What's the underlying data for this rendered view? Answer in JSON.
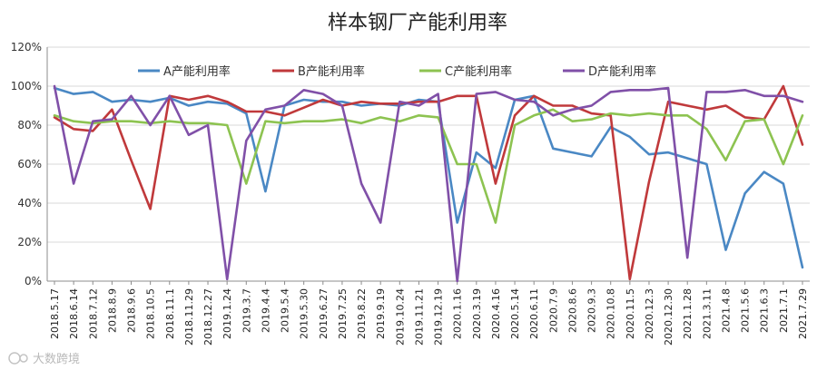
{
  "watermark": "大数跨境",
  "chart_data": {
    "type": "line",
    "title": "样本钢厂产能利用率",
    "xlabel": "",
    "ylabel": "",
    "ylim": [
      0,
      1.2
    ],
    "y_ticks": [
      "0%",
      "20%",
      "40%",
      "60%",
      "80%",
      "100%",
      "120%"
    ],
    "grid": "horizontal",
    "legend_position": "top",
    "categories": [
      "2018.5.17",
      "2018.6.14",
      "2018.7.12",
      "2018.8.9",
      "2018.9.6",
      "2018.10.5",
      "2018.11.1",
      "2018.11.29",
      "2018.12.27",
      "2019.1.24",
      "2019.3.7",
      "2019.4.4",
      "2019.5.4",
      "2019.5.30",
      "2019.6.27",
      "2019.7.25",
      "2019.8.22",
      "2019.9.19",
      "2019.10.24",
      "2019.11.21",
      "2019.12.19",
      "2020.1.16",
      "2020.3.19",
      "2020.4.16",
      "2020.5.14",
      "2020.6.11",
      "2020.7.9",
      "2020.8.6",
      "2020.9.3",
      "2020.10.8",
      "2020.11.5",
      "2020.12.3",
      "2020.12.30",
      "2021.1.28",
      "2021.3.11",
      "2021.4.8",
      "2021.5.6",
      "2021.6.3",
      "2021.7.1",
      "2021.7.29"
    ],
    "series": [
      {
        "name": "A产能利用率",
        "color": "#4a88c4",
        "values": [
          0.99,
          0.96,
          0.97,
          0.92,
          0.93,
          0.92,
          0.94,
          0.9,
          0.92,
          0.91,
          0.86,
          0.46,
          0.9,
          0.93,
          0.92,
          0.92,
          0.9,
          0.91,
          0.9,
          0.93,
          0.92,
          0.3,
          0.66,
          0.58,
          0.93,
          0.95,
          0.68,
          0.66,
          0.64,
          0.79,
          0.74,
          0.65,
          0.66,
          0.63,
          0.6,
          0.16,
          0.45,
          0.56,
          0.5,
          0.07
        ]
      },
      {
        "name": "B产能利用率",
        "color": "#c0393b",
        "values": [
          0.84,
          0.78,
          0.77,
          0.88,
          0.62,
          0.37,
          0.95,
          0.93,
          0.95,
          0.92,
          0.87,
          0.87,
          0.85,
          0.89,
          0.93,
          0.9,
          0.92,
          0.91,
          0.91,
          0.92,
          0.92,
          0.95,
          0.95,
          0.5,
          0.85,
          0.95,
          0.9,
          0.9,
          0.86,
          0.85,
          0.01,
          0.51,
          0.92,
          0.9,
          0.88,
          0.9,
          0.84,
          0.83,
          1.0,
          0.7
        ]
      },
      {
        "name": "C产能利用率",
        "color": "#8dc351",
        "values": [
          0.85,
          0.82,
          0.81,
          0.82,
          0.82,
          0.81,
          0.82,
          0.81,
          0.81,
          0.8,
          0.5,
          0.82,
          0.81,
          0.82,
          0.82,
          0.83,
          0.81,
          0.84,
          0.82,
          0.85,
          0.84,
          0.6,
          0.6,
          0.3,
          0.8,
          0.85,
          0.88,
          0.82,
          0.83,
          0.86,
          0.85,
          0.86,
          0.85,
          0.85,
          0.78,
          0.62,
          0.82,
          0.83,
          0.6,
          0.85
        ]
      },
      {
        "name": "D产能利用率",
        "color": "#8050a8",
        "values": [
          1.0,
          0.5,
          0.82,
          0.83,
          0.95,
          0.8,
          0.95,
          0.75,
          0.8,
          0.01,
          0.72,
          0.88,
          0.9,
          0.98,
          0.96,
          0.9,
          0.5,
          0.3,
          0.92,
          0.9,
          0.96,
          0.0,
          0.96,
          0.97,
          0.93,
          0.92,
          0.85,
          0.88,
          0.9,
          0.97,
          0.98,
          0.98,
          0.99,
          0.12,
          0.97,
          0.97,
          0.98,
          0.95,
          0.95,
          0.92
        ]
      }
    ]
  }
}
